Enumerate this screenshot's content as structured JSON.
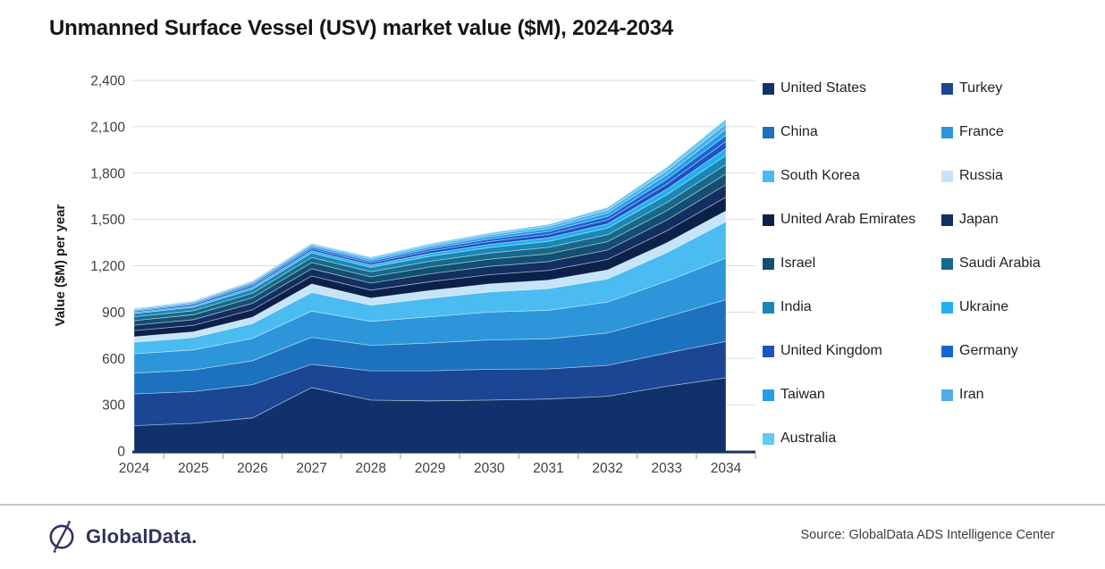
{
  "header": {
    "title": "Unmanned Surface Vessel (USV) market value ($M), 2024-2034"
  },
  "chart_data": {
    "type": "area",
    "stacked": true,
    "title": "Unmanned Surface Vessel (USV) market value ($M), 2024-2034",
    "xlabel": "",
    "ylabel": "Value ($M) per year",
    "ylim": [
      0,
      2400
    ],
    "ytick_step": 300,
    "ytick_labels": [
      "0",
      "300",
      "600",
      "900",
      "1,200",
      "1,500",
      "1,800",
      "2,100",
      "2,400"
    ],
    "years": [
      2024,
      2025,
      2026,
      2027,
      2028,
      2029,
      2030,
      2031,
      2032,
      2033,
      2034
    ],
    "grid": true,
    "legend_position": "right",
    "series": [
      {
        "name": "United States",
        "color": "#10316B",
        "values": [
          165,
          180,
          215,
          412,
          330,
          325,
          330,
          337,
          355,
          420,
          475
        ]
      },
      {
        "name": "Turkey",
        "color": "#1A4694",
        "values": [
          205,
          205,
          215,
          150,
          190,
          195,
          200,
          195,
          200,
          215,
          235
        ]
      },
      {
        "name": "China",
        "color": "#1C72BE",
        "values": [
          135,
          140,
          155,
          175,
          165,
          180,
          190,
          195,
          210,
          235,
          270
        ]
      },
      {
        "name": "France",
        "color": "#2D96DB",
        "values": [
          125,
          130,
          145,
          170,
          155,
          170,
          180,
          185,
          200,
          230,
          270
        ]
      },
      {
        "name": "South Korea",
        "color": "#4ABCF1",
        "values": [
          75,
          80,
          95,
          120,
          105,
          120,
          130,
          140,
          150,
          185,
          235
        ]
      },
      {
        "name": "Russia",
        "color": "#C6E4F7",
        "values": [
          35,
          37,
          42,
          55,
          45,
          50,
          52,
          55,
          58,
          63,
          70
        ]
      },
      {
        "name": "United Arab Emirates",
        "color": "#0B2149",
        "values": [
          40,
          42,
          48,
          52,
          52,
          57,
          60,
          63,
          68,
          78,
          90
        ]
      },
      {
        "name": "Japan",
        "color": "#132E61",
        "values": [
          35,
          37,
          42,
          47,
          46,
          51,
          54,
          57,
          61,
          70,
          80
        ]
      },
      {
        "name": "Israel",
        "color": "#124F70",
        "values": [
          30,
          32,
          36,
          40,
          40,
          44,
          47,
          50,
          54,
          61,
          70
        ]
      },
      {
        "name": "Saudi Arabia",
        "color": "#17698A",
        "values": [
          25,
          26,
          30,
          33,
          33,
          37,
          39,
          42,
          45,
          52,
          60
        ]
      },
      {
        "name": "India",
        "color": "#1A87B5",
        "values": [
          20,
          22,
          26,
          29,
          29,
          33,
          36,
          39,
          43,
          51,
          60
        ]
      },
      {
        "name": "Ukraine",
        "color": "#20B0F2",
        "values": [
          8,
          9,
          12,
          14,
          14,
          17,
          20,
          23,
          27,
          35,
          45
        ]
      },
      {
        "name": "United Kingdom",
        "color": "#1B53C0",
        "values": [
          8,
          9,
          12,
          13,
          14,
          17,
          19,
          22,
          26,
          34,
          45
        ]
      },
      {
        "name": "Germany",
        "color": "#1566D2",
        "values": [
          6,
          7,
          9,
          11,
          11,
          14,
          16,
          19,
          23,
          31,
          40
        ]
      },
      {
        "name": "Taiwan",
        "color": "#21A0EA",
        "values": [
          6,
          7,
          9,
          11,
          11,
          13,
          15,
          18,
          22,
          30,
          40
        ]
      },
      {
        "name": "Iran",
        "color": "#4FADE8",
        "values": [
          4,
          5,
          7,
          8,
          9,
          11,
          13,
          15,
          19,
          26,
          35
        ]
      },
      {
        "name": "Australia",
        "color": "#62CAF4",
        "values": [
          3,
          4,
          5,
          6,
          7,
          9,
          11,
          13,
          16,
          22,
          30
        ]
      }
    ]
  },
  "colors": {
    "axis": "#17365D",
    "gridline": "#DADADA",
    "tick_label": "#3F3F3F",
    "divider": "#C6C6C6",
    "brand_navy": "#32325F"
  },
  "footer": {
    "brand": "GlobalData.",
    "source": "Source: GlobalData ADS Intelligence Center"
  }
}
